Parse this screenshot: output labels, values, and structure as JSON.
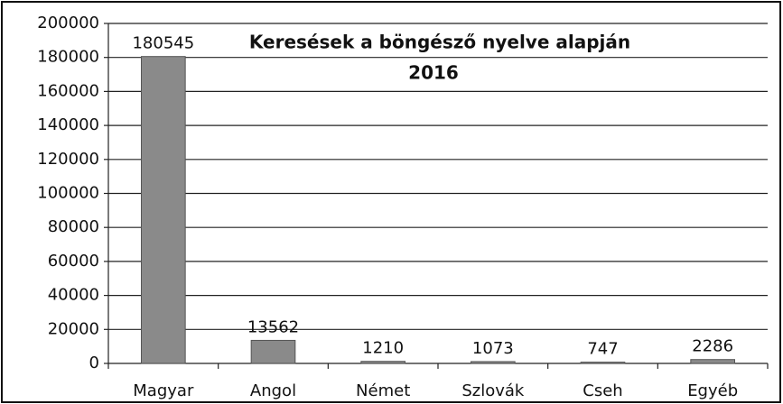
{
  "chart_data": {
    "type": "bar",
    "title": "Keresések a böngésző nyelve alapján",
    "subtitle": "2016",
    "categories": [
      "Magyar",
      "Angol",
      "Német",
      "Szlovák",
      "Cseh",
      "Egyéb"
    ],
    "values": [
      180545,
      13562,
      1210,
      1073,
      747,
      2286
    ],
    "color": "#8a8a8a",
    "ylim": [
      0,
      200000
    ],
    "yticks": [
      0,
      20000,
      40000,
      60000,
      80000,
      100000,
      120000,
      140000,
      160000,
      180000,
      200000
    ],
    "grid": true
  }
}
